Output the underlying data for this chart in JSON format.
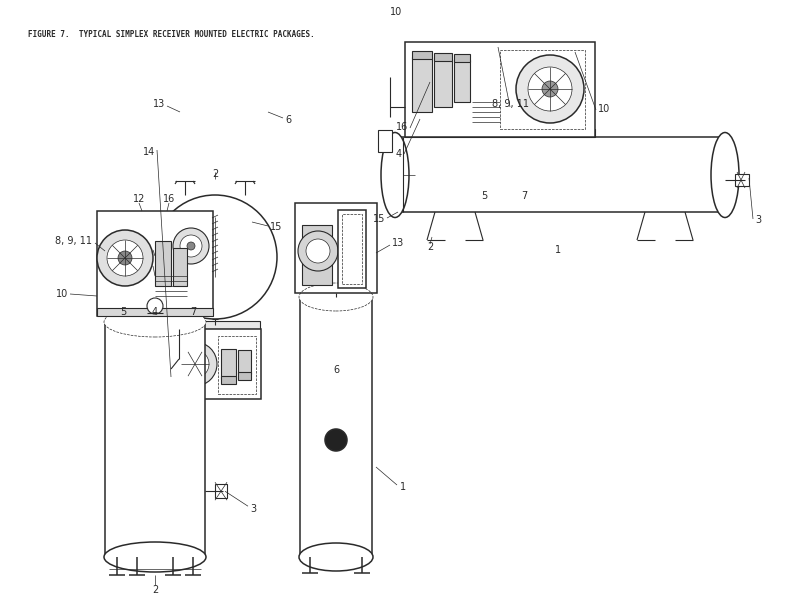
{
  "title": "FIGURE 7.  TYPICAL SIMPLEX RECEIVER MOUNTED ELECTRIC PACKAGES.",
  "page_number": "10",
  "bg": "#ffffff",
  "lc": "#2a2a2a",
  "figsize": [
    7.92,
    6.12
  ],
  "dpi": 100
}
